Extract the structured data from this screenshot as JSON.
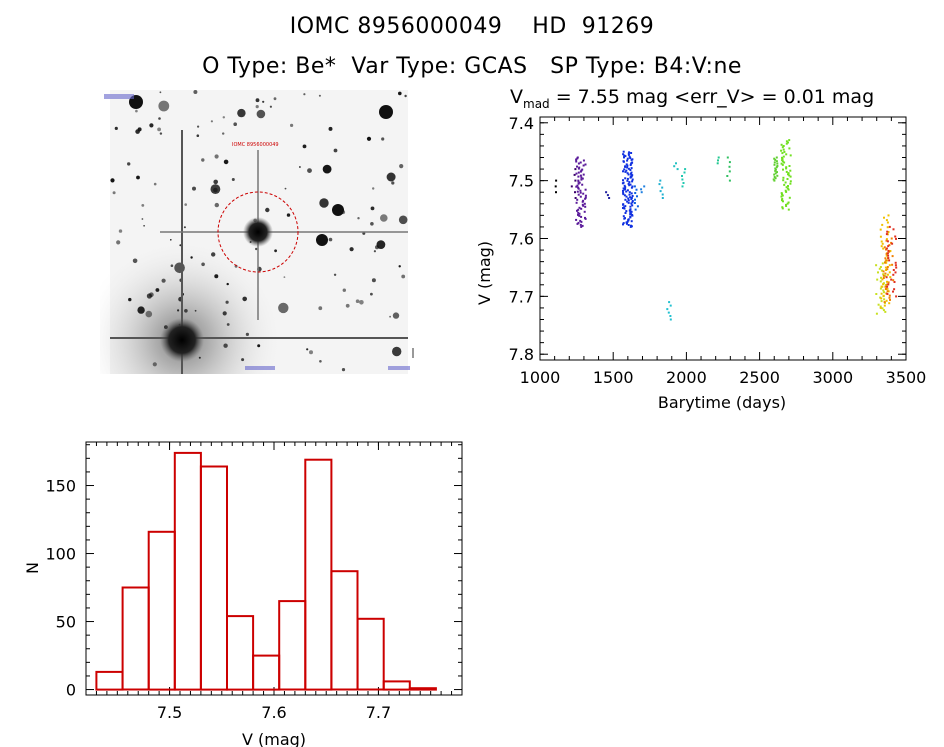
{
  "header": {
    "line1": "IOMC 8956000049    HD  91269",
    "line2": "O Type: Be*  Var Type: GCAS   SP Type: B4:V:ne"
  },
  "image_panel": {
    "description_icon": "sky-image",
    "target_label": "IOMC 8956000049"
  },
  "chart_data": [
    {
      "type": "scatter",
      "title_prefix": "V",
      "title_sub": "mad",
      "title_rest": " = 7.55 mag <err_V> = 0.01 mag",
      "xlabel": "Barytime (days)",
      "ylabel": "V (mag)",
      "xlim": [
        1000,
        3500
      ],
      "ylim": [
        7.81,
        7.39
      ],
      "y_inverted": true,
      "x_ticks": [
        1000,
        1500,
        2000,
        2500,
        3000,
        3500
      ],
      "y_ticks": [
        7.4,
        7.5,
        7.6,
        7.7,
        7.8
      ],
      "clusters": [
        {
          "x": 1110,
          "ymin": 7.5,
          "ymax": 7.52,
          "color": "#000000",
          "n": 3
        },
        {
          "x": 1230,
          "ymin": 7.48,
          "ymax": 7.53,
          "color": "#3a006a",
          "n": 6
        },
        {
          "x": 1280,
          "ymin": 7.46,
          "ymax": 7.58,
          "color": "#5a1a9a",
          "n": 70
        },
        {
          "x": 1460,
          "ymin": 7.52,
          "ymax": 7.53,
          "color": "#2020a0",
          "n": 3
        },
        {
          "x": 1600,
          "ymin": 7.45,
          "ymax": 7.58,
          "color": "#1030e0",
          "n": 120
        },
        {
          "x": 1660,
          "ymin": 7.51,
          "ymax": 7.55,
          "color": "#1060e0",
          "n": 8
        },
        {
          "x": 1700,
          "ymin": 7.51,
          "ymax": 7.52,
          "color": "#2080e0",
          "n": 3
        },
        {
          "x": 1830,
          "ymin": 7.5,
          "ymax": 7.53,
          "color": "#20b0d0",
          "n": 6
        },
        {
          "x": 1880,
          "ymin": 7.71,
          "ymax": 7.74,
          "color": "#20c0d0",
          "n": 6
        },
        {
          "x": 1930,
          "ymin": 7.47,
          "ymax": 7.48,
          "color": "#20c0c0",
          "n": 3
        },
        {
          "x": 1980,
          "ymin": 7.48,
          "ymax": 7.51,
          "color": "#20c8b0",
          "n": 6
        },
        {
          "x": 2210,
          "ymin": 7.46,
          "ymax": 7.47,
          "color": "#20c890",
          "n": 3
        },
        {
          "x": 2290,
          "ymin": 7.46,
          "ymax": 7.5,
          "color": "#30c060",
          "n": 6
        },
        {
          "x": 2610,
          "ymin": 7.46,
          "ymax": 7.5,
          "color": "#60d030",
          "n": 20
        },
        {
          "x": 2680,
          "ymin": 7.43,
          "ymax": 7.55,
          "color": "#70e020",
          "n": 60
        },
        {
          "x": 3330,
          "ymin": 7.64,
          "ymax": 7.73,
          "color": "#c8e020",
          "n": 30
        },
        {
          "x": 3360,
          "ymin": 7.56,
          "ymax": 7.72,
          "color": "#f0c000",
          "n": 40
        },
        {
          "x": 3380,
          "ymin": 7.6,
          "ymax": 7.71,
          "color": "#f08000",
          "n": 30
        },
        {
          "x": 3400,
          "ymin": 7.58,
          "ymax": 7.7,
          "color": "#e03020",
          "n": 30
        }
      ]
    },
    {
      "type": "bar",
      "xlabel": "V (mag)",
      "ylabel": "N",
      "xlim": [
        7.42,
        7.78
      ],
      "ylim": [
        -4,
        182
      ],
      "x_ticks": [
        7.5,
        7.6,
        7.7
      ],
      "x_tick_labels": [
        "7.5",
        "7.6",
        "7.7"
      ],
      "y_ticks": [
        0,
        50,
        100,
        150
      ],
      "bin_start": 7.43,
      "bin_width": 0.025,
      "values": [
        13,
        75,
        116,
        174,
        164,
        54,
        25,
        65,
        169,
        87,
        52,
        6,
        1,
        0
      ],
      "bar_color": "#cc0000"
    }
  ]
}
